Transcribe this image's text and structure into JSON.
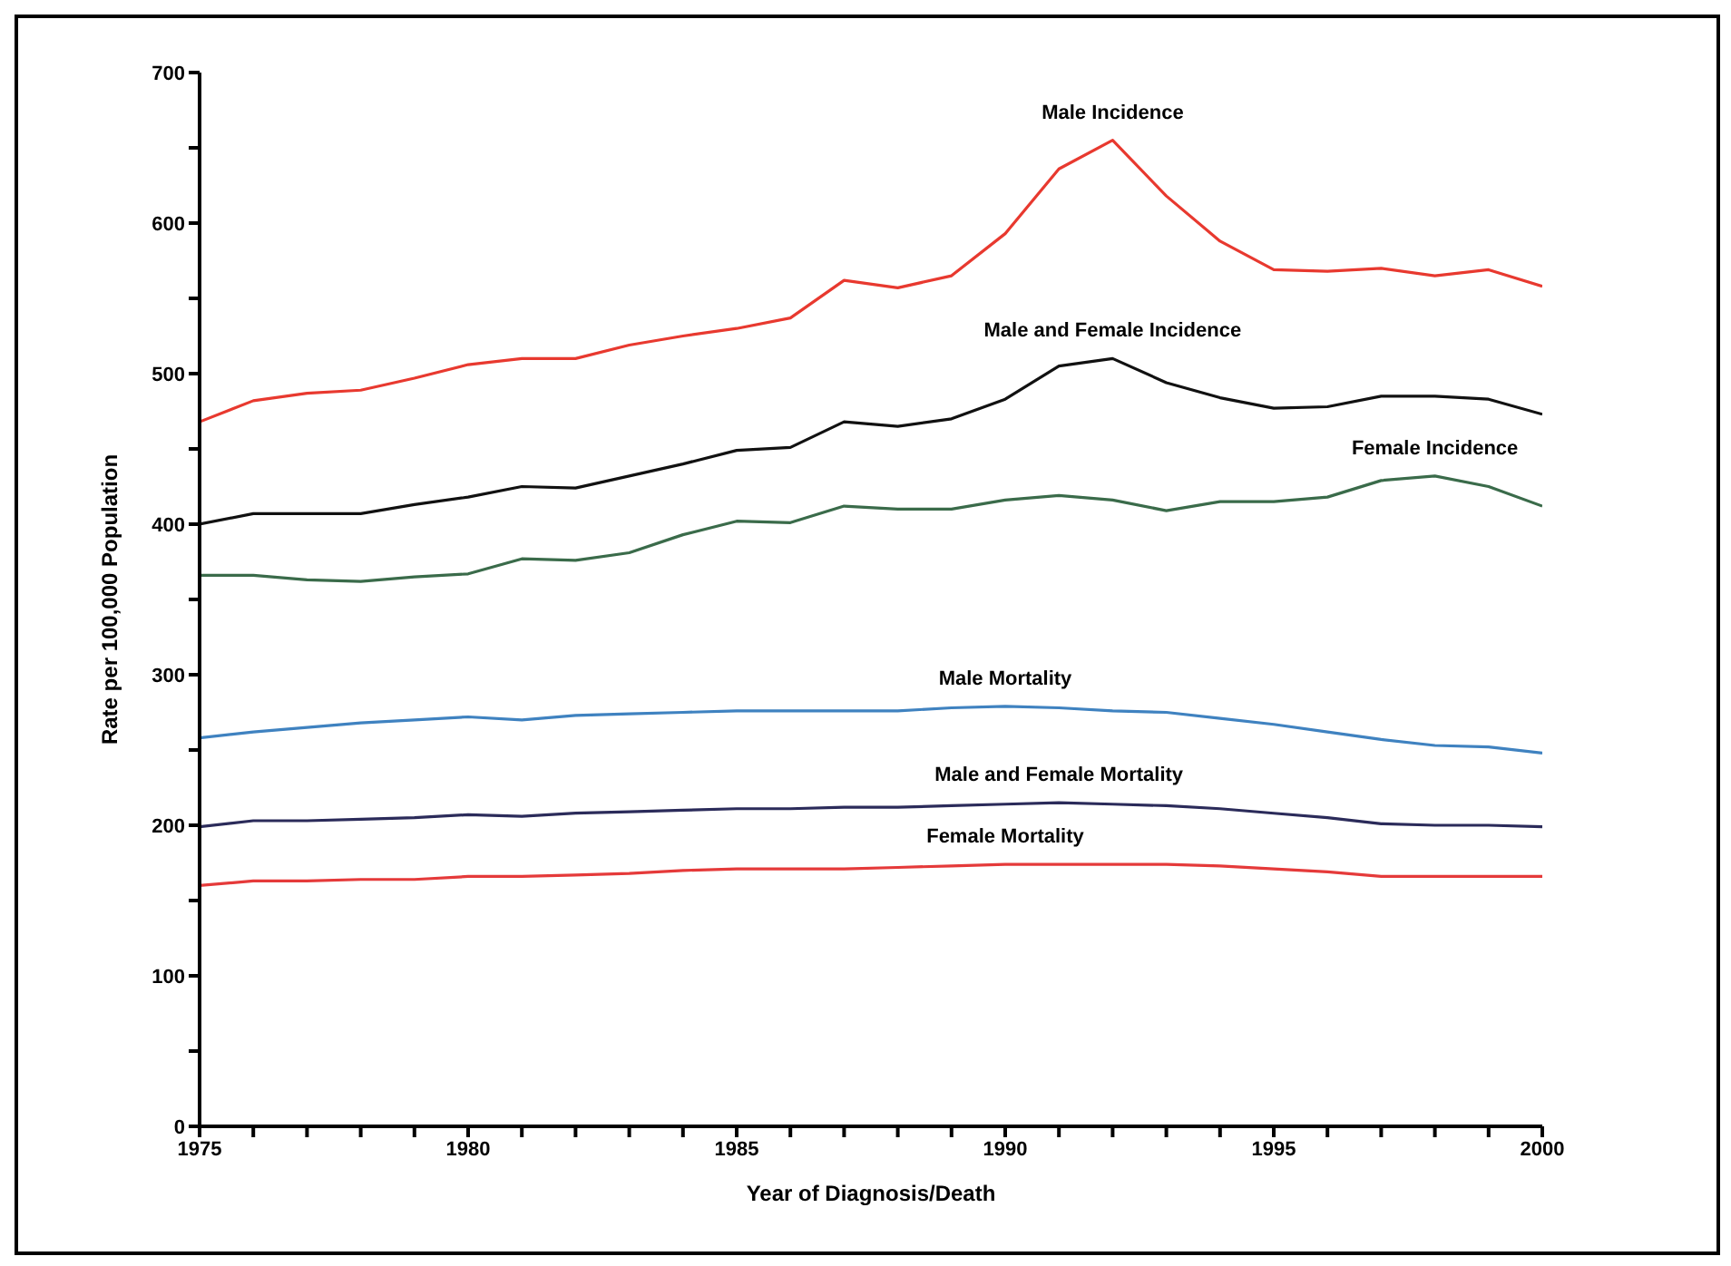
{
  "chart_data": {
    "type": "line",
    "xlabel": "Year of Diagnosis/Death",
    "ylabel": "Rate per 100,000 Population",
    "x": [
      1975,
      1976,
      1977,
      1978,
      1979,
      1980,
      1981,
      1982,
      1983,
      1984,
      1985,
      1986,
      1987,
      1988,
      1989,
      1990,
      1991,
      1992,
      1993,
      1994,
      1995,
      1996,
      1997,
      1998,
      1999,
      2000
    ],
    "xlim": [
      1975,
      2000
    ],
    "xticks": [
      1975,
      {
        "value": 1976,
        "label": null
      },
      {
        "value": 1977,
        "label": null
      },
      {
        "value": 1978,
        "label": null
      },
      {
        "value": 1979,
        "label": null
      },
      1980,
      {
        "value": 1981,
        "label": null
      },
      {
        "value": 1982,
        "label": null
      },
      {
        "value": 1983,
        "label": null
      },
      {
        "value": 1984,
        "label": null
      },
      1985,
      {
        "value": 1986,
        "label": null
      },
      {
        "value": 1987,
        "label": null
      },
      {
        "value": 1988,
        "label": null
      },
      {
        "value": 1989,
        "label": null
      },
      1990,
      {
        "value": 1991,
        "label": null
      },
      {
        "value": 1992,
        "label": null
      },
      {
        "value": 1993,
        "label": null
      },
      {
        "value": 1994,
        "label": null
      },
      1995,
      {
        "value": 1996,
        "label": null
      },
      {
        "value": 1997,
        "label": null
      },
      {
        "value": 1998,
        "label": null
      },
      {
        "value": 1999,
        "label": null
      },
      2000
    ],
    "ylim": [
      0,
      700
    ],
    "yticks": [
      0,
      {
        "value": 50,
        "label": null
      },
      100,
      {
        "value": 150,
        "label": null
      },
      200,
      {
        "value": 250,
        "label": null
      },
      300,
      {
        "value": 350,
        "label": null
      },
      400,
      {
        "value": 450,
        "label": null
      },
      500,
      {
        "value": 550,
        "label": null
      },
      600,
      {
        "value": 650,
        "label": null
      },
      700
    ],
    "grid": false,
    "legend": false,
    "marker": "none",
    "line_style": "solid",
    "series": [
      {
        "name": "Male Incidence",
        "color": "#e8392f",
        "values": [
          468,
          482,
          487,
          489,
          497,
          506,
          510,
          510,
          519,
          525,
          530,
          537,
          562,
          557,
          565,
          593,
          636,
          655,
          618,
          588,
          569,
          568,
          570,
          565,
          569,
          558
        ]
      },
      {
        "name": "Male and Female Incidence",
        "color": "#111111",
        "values": [
          400,
          407,
          407,
          407,
          413,
          418,
          425,
          424,
          432,
          440,
          449,
          451,
          468,
          465,
          470,
          483,
          505,
          510,
          494,
          484,
          477,
          478,
          485,
          485,
          483,
          473
        ]
      },
      {
        "name": "Female Incidence",
        "color": "#3a6b4a",
        "values": [
          366,
          366,
          363,
          362,
          365,
          367,
          377,
          376,
          381,
          393,
          402,
          401,
          412,
          410,
          410,
          416,
          419,
          416,
          409,
          415,
          415,
          418,
          429,
          432,
          425,
          412
        ]
      },
      {
        "name": "Male Mortality",
        "color": "#3f82c0",
        "values": [
          258,
          262,
          265,
          268,
          270,
          272,
          270,
          273,
          274,
          275,
          276,
          276,
          276,
          276,
          278,
          279,
          278,
          276,
          275,
          271,
          267,
          262,
          257,
          253,
          252,
          248
        ]
      },
      {
        "name": "Male and Female Mortality",
        "color": "#2b2b5a",
        "values": [
          199,
          203,
          203,
          204,
          205,
          207,
          206,
          208,
          209,
          210,
          211,
          211,
          212,
          212,
          213,
          214,
          215,
          214,
          213,
          211,
          208,
          205,
          201,
          200,
          200,
          199
        ]
      },
      {
        "name": "Female Mortality",
        "color": "#e53a3a",
        "values": [
          160,
          163,
          163,
          164,
          164,
          166,
          166,
          167,
          168,
          170,
          171,
          171,
          171,
          172,
          173,
          174,
          174,
          174,
          174,
          173,
          171,
          169,
          166,
          166,
          166,
          166
        ]
      }
    ]
  }
}
